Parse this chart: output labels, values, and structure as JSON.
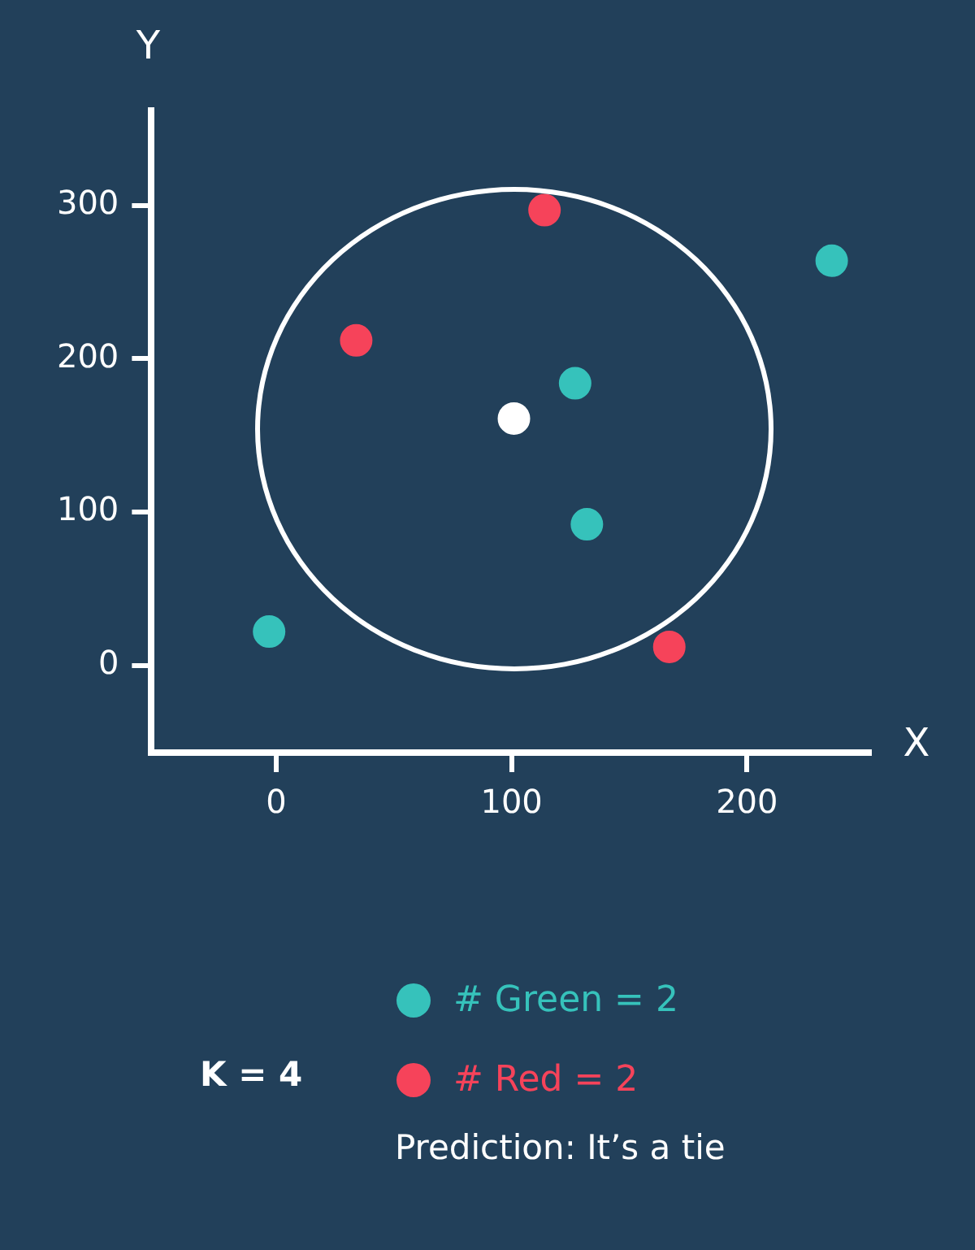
{
  "chart_data": {
    "type": "scatter",
    "xlabel": "X",
    "ylabel": "Y",
    "xlim": [
      -53,
      252
    ],
    "ylim": [
      -57,
      362
    ],
    "xticks": [
      0,
      100,
      200
    ],
    "yticks": [
      0,
      100,
      200,
      300
    ],
    "grid": false,
    "legend": "bottom",
    "marker": "circle",
    "series": [
      {
        "name": "# Green = 2",
        "color": "#36c2bb",
        "x": [
          -3,
          236,
          127,
          132
        ],
        "values": [
          22,
          264,
          184,
          92
        ]
      },
      {
        "name": "# Red = 2",
        "color": "#f6435a",
        "x": [
          34,
          114,
          167
        ],
        "values": [
          212,
          297,
          12
        ]
      },
      {
        "color": "#ffffff",
        "x": [
          101
        ],
        "values": [
          161
        ]
      }
    ],
    "annotations": [
      "K = 4",
      "Prediction: It’s a tie"
    ]
  }
}
